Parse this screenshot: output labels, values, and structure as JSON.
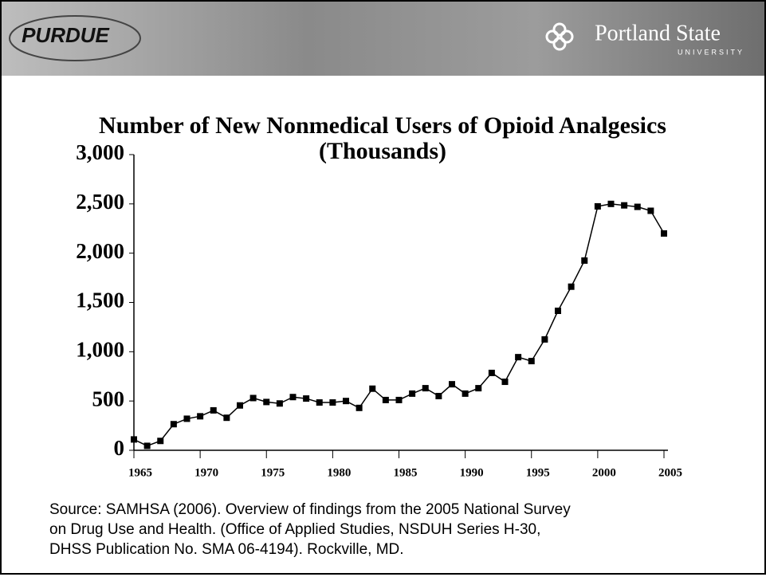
{
  "header": {
    "left_logo": "PURDUE",
    "right_logo": "Portland State",
    "right_logo_sub": "UNIVERSITY"
  },
  "chart_data": {
    "type": "line",
    "title": "Number of New Nonmedical Users of Opioid Analgesics",
    "subtitle": "(Thousands)",
    "x": [
      1965,
      1966,
      1967,
      1968,
      1969,
      1970,
      1971,
      1972,
      1973,
      1974,
      1975,
      1976,
      1977,
      1978,
      1979,
      1980,
      1981,
      1982,
      1983,
      1984,
      1985,
      1986,
      1987,
      1988,
      1989,
      1990,
      1991,
      1992,
      1993,
      1994,
      1995,
      1996,
      1997,
      1998,
      1999,
      2000,
      2001,
      2002,
      2003,
      2004,
      2005
    ],
    "series": [
      {
        "color": "#000000",
        "values": [
          110,
          45,
          95,
          265,
          320,
          345,
          405,
          330,
          455,
          530,
          490,
          475,
          540,
          525,
          485,
          485,
          500,
          430,
          625,
          510,
          510,
          575,
          630,
          550,
          670,
          575,
          630,
          785,
          695,
          945,
          905,
          1125,
          1415,
          1660,
          1925,
          2475,
          2500,
          2485,
          2470,
          2430,
          2200
        ]
      }
    ],
    "xlim": [
      1965,
      2005
    ],
    "xticks": [
      1965,
      1970,
      1975,
      1980,
      1985,
      1990,
      1995,
      2000,
      2005
    ],
    "ylim": [
      0,
      3000
    ],
    "yticks": [
      0,
      {
        "value": 500,
        "label": "500"
      },
      {
        "value": 1000,
        "label": "1,000"
      },
      {
        "value": 1500,
        "label": "1,500"
      },
      {
        "value": 2000,
        "label": "2,000"
      },
      {
        "value": 2500,
        "label": "2,500"
      },
      {
        "value": 3000,
        "label": "3,000"
      }
    ]
  },
  "source": [
    "Source: SAMHSA (2006). Overview of findings from the 2005 National Survey",
    "on Drug Use and Health.  (Office of Applied Studies, NSDUH Series H-30,",
    "DHSS Publication No. SMA 06-4194). Rockville, MD."
  ]
}
